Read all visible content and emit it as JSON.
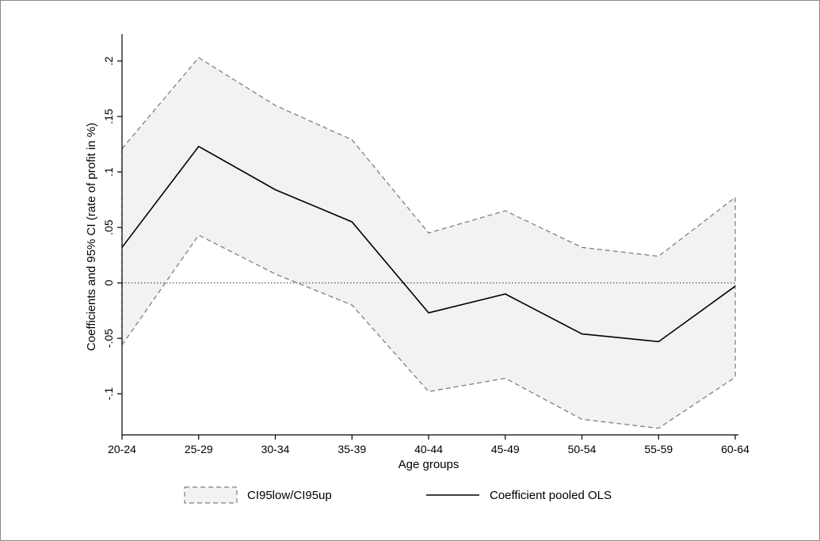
{
  "chart_data": {
    "type": "line",
    "xlabel": "Age groups",
    "ylabel": "Coefficients and 95% CI (rate of profit in %)",
    "categories": [
      "20-24",
      "25-29",
      "30-34",
      "35-39",
      "40-44",
      "45-49",
      "50-54",
      "55-59",
      "60-64"
    ],
    "y_ticks": [
      -0.1,
      -0.05,
      0,
      0.05,
      0.1,
      0.15,
      0.2
    ],
    "y_tick_labels": [
      "-.1",
      "-.05",
      "0",
      ".05",
      ".1",
      ".15",
      ".2"
    ],
    "ylim": [
      -0.137,
      0.22
    ],
    "reference_line": 0,
    "series": [
      {
        "name": "Coefficient pooled OLS",
        "values": [
          0.032,
          0.123,
          0.084,
          0.055,
          -0.027,
          -0.01,
          -0.046,
          -0.053,
          -0.003
        ]
      },
      {
        "name": "CI95low/CI95up",
        "lower": [
          -0.056,
          0.043,
          0.008,
          -0.02,
          -0.098,
          -0.086,
          -0.123,
          -0.131,
          -0.085
        ],
        "upper": [
          0.121,
          0.203,
          0.16,
          0.129,
          0.045,
          0.065,
          0.032,
          0.024,
          0.077
        ]
      }
    ],
    "legend": {
      "position": "bottom",
      "items": [
        {
          "label": "CI95low/CI95up",
          "style": "band"
        },
        {
          "label": "Coefficient pooled OLS",
          "style": "line"
        }
      ]
    },
    "colors": {
      "band_fill": "#f2f2f2",
      "band_edge": "#808080",
      "line": "#000000",
      "reference": "#555555",
      "axis": "#000000"
    }
  }
}
